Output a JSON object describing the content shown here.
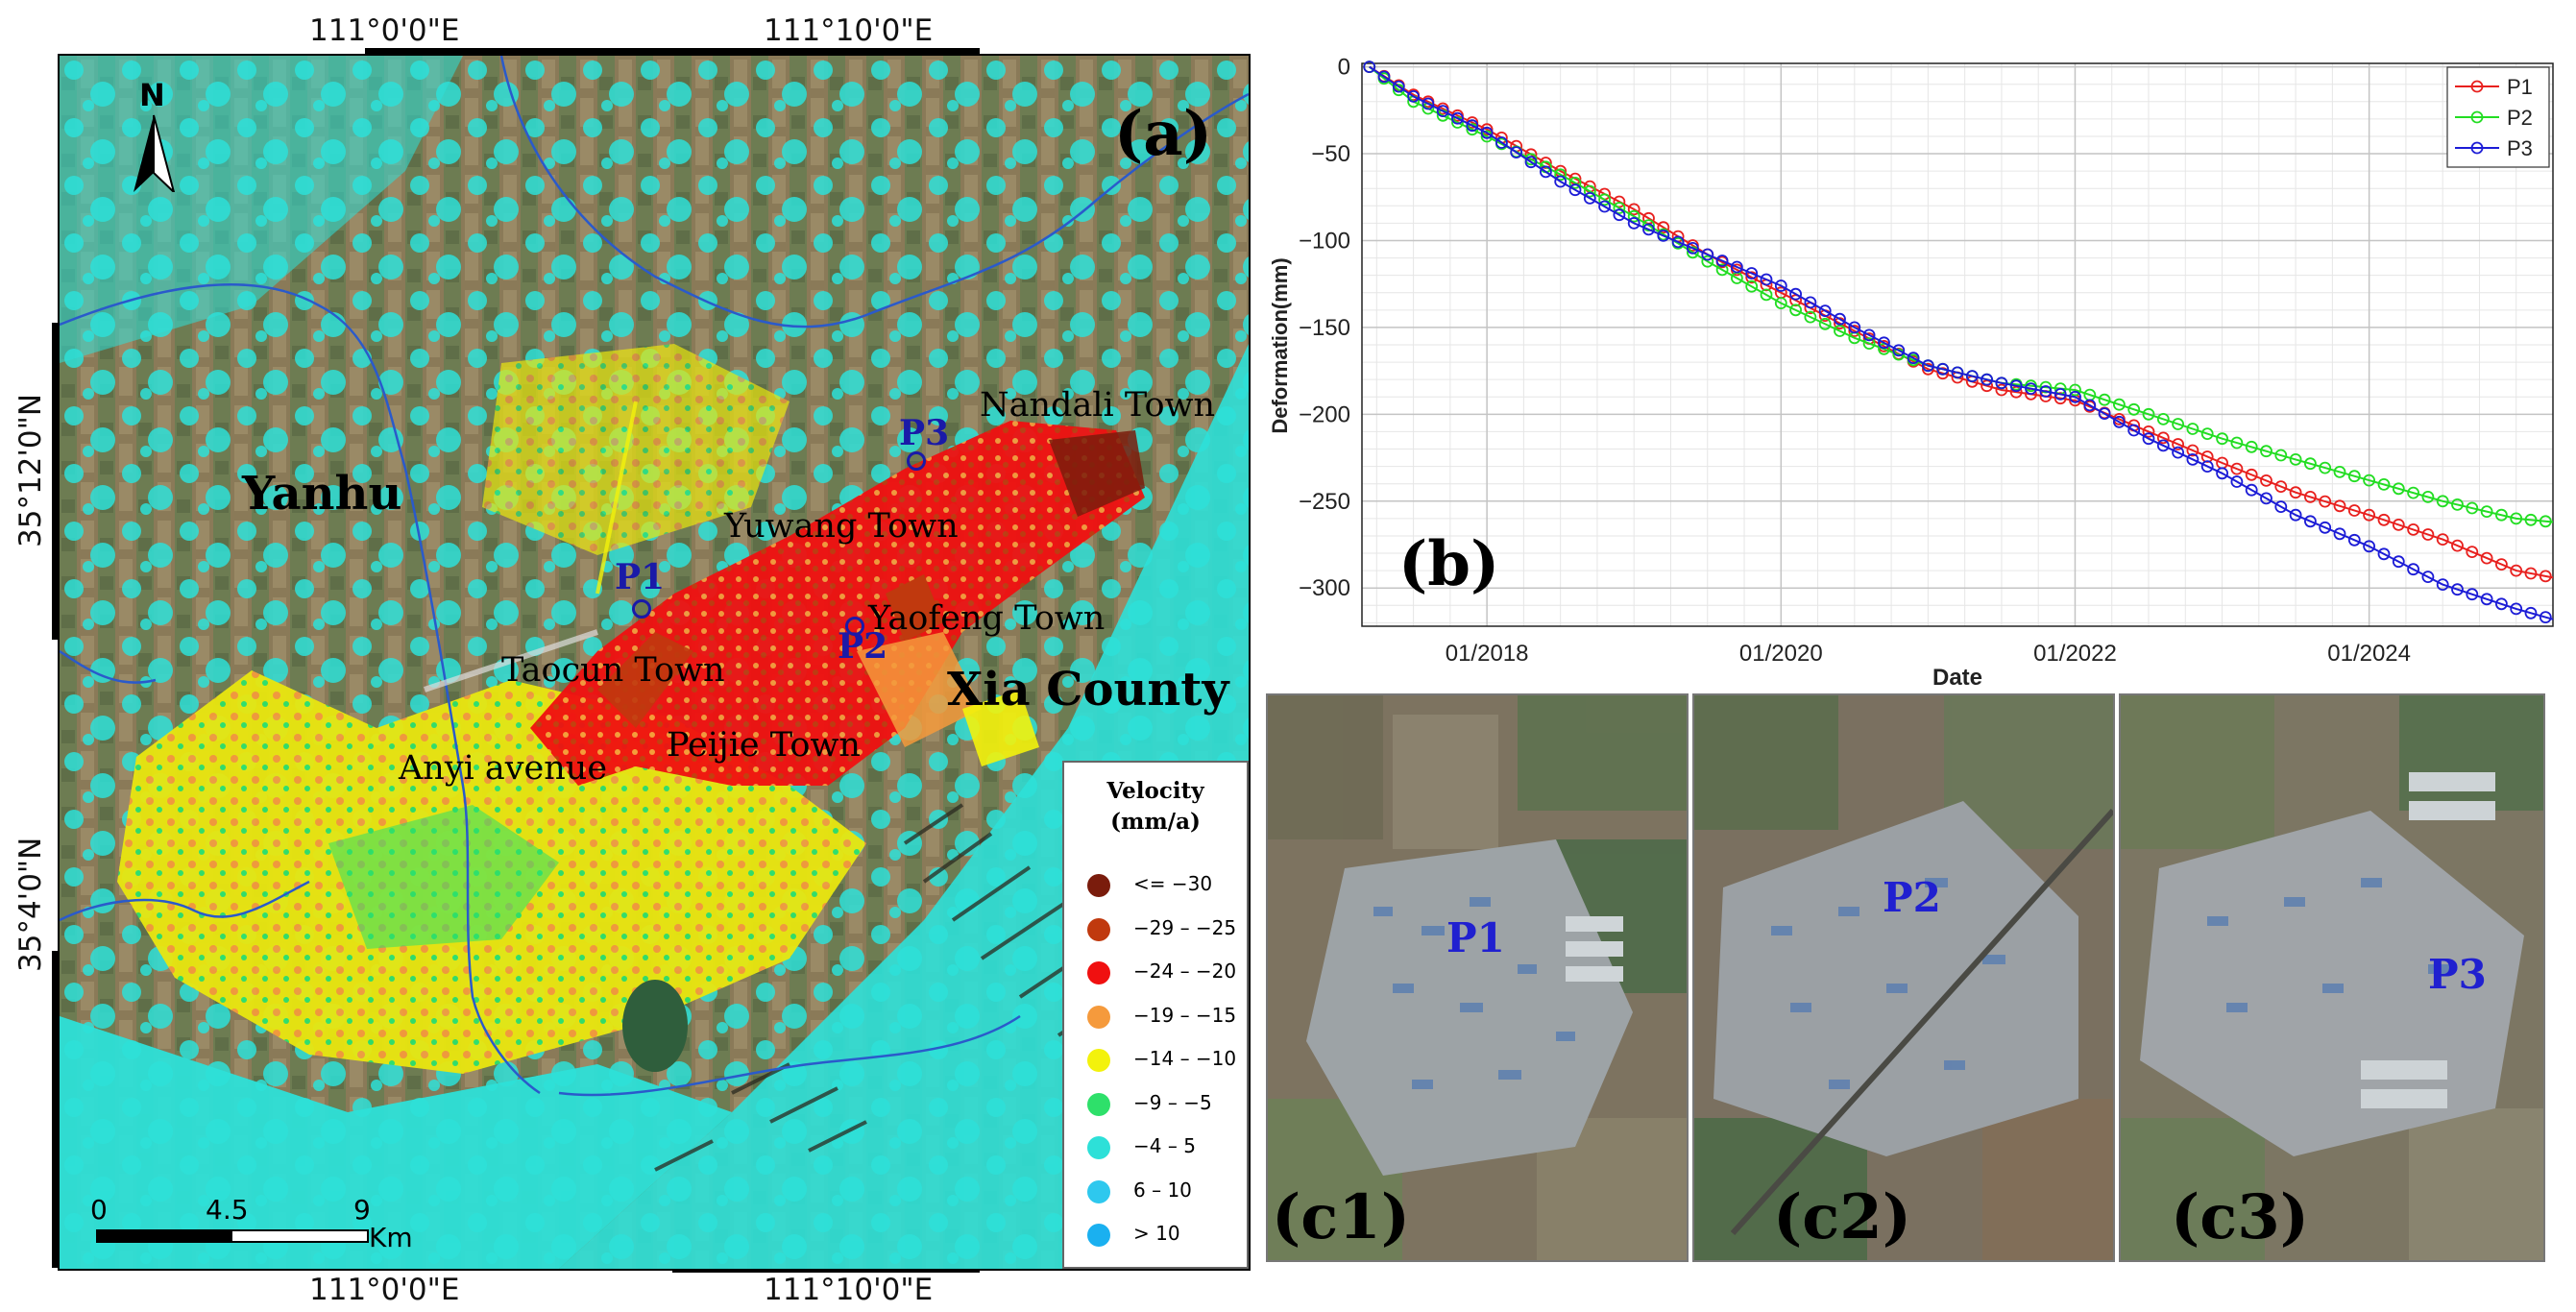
{
  "figure": {
    "panel_a_label": "(a)",
    "panel_b_label": "(b)",
    "top_ticks": [
      "111°0'0\"E",
      "111°10'0\"E"
    ],
    "bottom_ticks": [
      "111°0'0\"E",
      "111°10'0\"E"
    ],
    "left_ticks": [
      "35°12'0\"N",
      "35°4'0\"N"
    ],
    "north_label": "N",
    "scalebar": {
      "ticks": [
        "0",
        "4.5",
        "9"
      ],
      "unit": "Km"
    },
    "places": {
      "yanhu": "Yanhu",
      "nandali": "Nandali Town",
      "yuwang": "Yuwang Town",
      "yaofeng": "Yaofeng Town",
      "taocun": "Taocun Town",
      "xia": "Xia County",
      "anyi": "Anyi avenue",
      "peijie": "Peijie Town"
    },
    "points": {
      "p1": "P1",
      "p2": "P2",
      "p3": "P3"
    },
    "legend": {
      "title_line1": "Velocity",
      "title_line2": "(mm/a)",
      "items": [
        {
          "label": "<= −30",
          "color": "#7a1c0c"
        },
        {
          "label": "−29 – −25",
          "color": "#c0390e"
        },
        {
          "label": "−24 – −20",
          "color": "#f01010"
        },
        {
          "label": "−19 – −15",
          "color": "#f59a3c"
        },
        {
          "label": "−14 – −10",
          "color": "#f3f20c"
        },
        {
          "label": "−9 – −5",
          "color": "#2ee06a"
        },
        {
          "label": "−4 – 5",
          "color": "#2de0d8"
        },
        {
          "label": "6 – 10",
          "color": "#2ec8ee"
        },
        {
          "label": "> 10",
          "color": "#1ab0f0"
        }
      ]
    },
    "photos": [
      {
        "label": "(c1)",
        "point": "P1"
      },
      {
        "label": "(c2)",
        "point": "P2"
      },
      {
        "label": "(c3)",
        "point": "P3"
      }
    ]
  },
  "chart_data": {
    "type": "line",
    "title": "",
    "xlabel": "Date",
    "ylabel": "Deformation(mm)",
    "x_ticks": [
      "01/2018",
      "01/2020",
      "01/2022",
      "01/2024"
    ],
    "y_ticks": [
      "0",
      "−50",
      "−100",
      "−150",
      "−200",
      "−250",
      "−300"
    ],
    "xlim": [
      2017.15,
      2025.25
    ],
    "ylim": [
      -322,
      2
    ],
    "series": [
      {
        "name": "P1",
        "color": "#e8201e",
        "x": [
          2017.2,
          2017.5,
          2018.0,
          2018.5,
          2019.0,
          2019.5,
          2020.0,
          2020.5,
          2021.0,
          2021.5,
          2022.0,
          2022.5,
          2023.0,
          2023.5,
          2024.0,
          2024.5,
          2025.0,
          2025.25
        ],
        "y": [
          0,
          -16,
          -36,
          -60,
          -82,
          -108,
          -130,
          -152,
          -174,
          -186,
          -192,
          -210,
          -228,
          -245,
          -258,
          -272,
          -290,
          -294
        ]
      },
      {
        "name": "P2",
        "color": "#22dd22",
        "x": [
          2017.2,
          2017.5,
          2018.0,
          2018.5,
          2019.0,
          2019.5,
          2020.0,
          2020.5,
          2021.0,
          2021.5,
          2022.0,
          2022.5,
          2023.0,
          2023.5,
          2024.0,
          2024.5,
          2025.0,
          2025.25
        ],
        "y": [
          0,
          -20,
          -40,
          -62,
          -86,
          -112,
          -136,
          -156,
          -172,
          -182,
          -186,
          -200,
          -214,
          -226,
          -238,
          -250,
          -260,
          -262
        ]
      },
      {
        "name": "P3",
        "color": "#1c1cd6",
        "x": [
          2017.2,
          2017.5,
          2018.0,
          2018.5,
          2019.0,
          2019.5,
          2020.0,
          2020.5,
          2021.0,
          2021.5,
          2022.0,
          2022.5,
          2023.0,
          2023.5,
          2024.0,
          2024.5,
          2025.0,
          2025.25
        ],
        "y": [
          0,
          -17,
          -38,
          -66,
          -90,
          -108,
          -126,
          -150,
          -172,
          -182,
          -190,
          -214,
          -234,
          -258,
          -276,
          -298,
          -312,
          -318
        ]
      }
    ],
    "legend_position": "top-right",
    "grid": true
  }
}
